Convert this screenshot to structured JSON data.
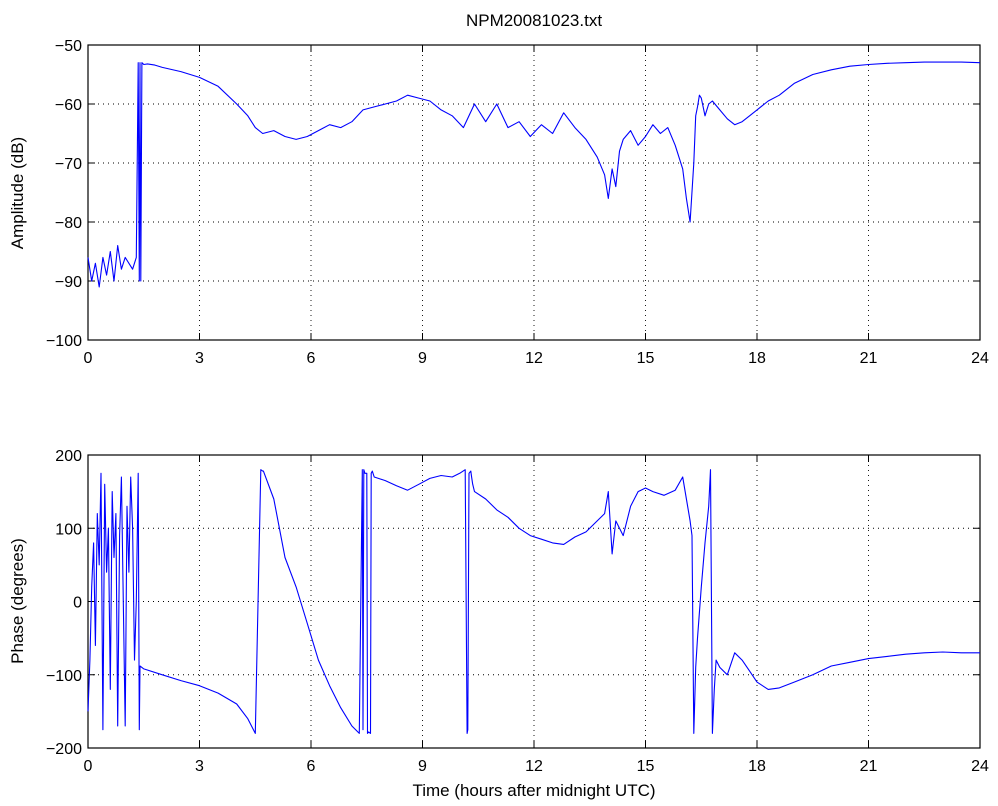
{
  "figure_title": "NPM20081023.txt",
  "chart_data": [
    {
      "type": "line",
      "title": "NPM20081023.txt",
      "xlabel": "",
      "ylabel": "Amplitude (dB)",
      "xlim": [
        0,
        24
      ],
      "ylim": [
        -100,
        -50
      ],
      "xticks": [
        "0",
        "3",
        "6",
        "9",
        "12",
        "15",
        "18",
        "21",
        "24"
      ],
      "yticks": [
        "-100",
        "-90",
        "-80",
        "-70",
        "-60",
        "-50"
      ],
      "grid": true,
      "color": "#0000ff",
      "series": [
        {
          "x": [
            0,
            0.1,
            0.2,
            0.3,
            0.4,
            0.5,
            0.6,
            0.7,
            0.8,
            0.9,
            1.0,
            1.1,
            1.2,
            1.3,
            1.35,
            1.38,
            1.4,
            1.42,
            1.45,
            1.5,
            1.6,
            1.8,
            2.0,
            2.5,
            3.0,
            3.5,
            4.0,
            4.3,
            4.5,
            4.7,
            5.0,
            5.3,
            5.6,
            5.9,
            6.2,
            6.5,
            6.8,
            7.1,
            7.4,
            7.7,
            8.0,
            8.3,
            8.6,
            8.9,
            9.2,
            9.5,
            9.8,
            10.1,
            10.4,
            10.7,
            11.0,
            11.3,
            11.6,
            11.9,
            12.2,
            12.5,
            12.8,
            13.1,
            13.4,
            13.7,
            13.9,
            14.0,
            14.1,
            14.2,
            14.3,
            14.4,
            14.6,
            14.8,
            15.0,
            15.2,
            15.4,
            15.6,
            15.8,
            16.0,
            16.1,
            16.2,
            16.3,
            16.35,
            16.4,
            16.45,
            16.5,
            16.6,
            16.7,
            16.8,
            17.0,
            17.2,
            17.4,
            17.6,
            17.8,
            18.0,
            18.3,
            18.6,
            19.0,
            19.5,
            20.0,
            20.5,
            21.0,
            21.5,
            22.0,
            22.5,
            23.0,
            23.5,
            24.0
          ],
          "y": [
            -86,
            -90,
            -87,
            -91,
            -86,
            -89,
            -85,
            -90,
            -84,
            -88,
            -86,
            -87,
            -88,
            -86,
            -53,
            -90,
            -53,
            -90,
            -53,
            -53.3,
            -53.2,
            -53.4,
            -53.8,
            -54.5,
            -55.5,
            -57,
            -60,
            -62,
            -64,
            -65,
            -64.5,
            -65.5,
            -66,
            -65.5,
            -64.5,
            -63.5,
            -64,
            -63,
            -61,
            -60.5,
            -60,
            -59.5,
            -58.5,
            -59,
            -59.5,
            -61,
            -62,
            -64,
            -60,
            -63,
            -60,
            -64,
            -63,
            -65.5,
            -63.5,
            -65,
            -61.5,
            -64,
            -66,
            -69,
            -72,
            -76,
            -71,
            -74,
            -68,
            -66,
            -64.5,
            -67,
            -65.5,
            -63.5,
            -65,
            -64,
            -67,
            -71,
            -76,
            -80,
            -70,
            -62,
            -60.5,
            -58.5,
            -59,
            -62,
            -60,
            -59.5,
            -61,
            -62.5,
            -63.5,
            -63,
            -62,
            -61,
            -59.5,
            -58.5,
            -56.5,
            -55,
            -54.2,
            -53.6,
            -53.3,
            -53.1,
            -53,
            -52.9,
            -52.9,
            -52.9,
            -53
          ]
        }
      ]
    },
    {
      "type": "line",
      "title": "",
      "xlabel": "Time (hours after midnight UTC)",
      "ylabel": "Phase (degrees)",
      "xlim": [
        0,
        24
      ],
      "ylim": [
        -200,
        200
      ],
      "xticks": [
        "0",
        "3",
        "6",
        "9",
        "12",
        "15",
        "18",
        "21",
        "24"
      ],
      "yticks": [
        "-200",
        "-100",
        "0",
        "100",
        "200"
      ],
      "grid": true,
      "color": "#0000ff",
      "series": [
        {
          "x": [
            0,
            0.05,
            0.1,
            0.15,
            0.2,
            0.25,
            0.3,
            0.35,
            0.4,
            0.45,
            0.5,
            0.55,
            0.6,
            0.65,
            0.7,
            0.75,
            0.8,
            0.85,
            0.9,
            0.95,
            1.0,
            1.05,
            1.1,
            1.15,
            1.2,
            1.25,
            1.3,
            1.35,
            1.38,
            1.4,
            1.45,
            1.5,
            2.0,
            2.5,
            3.0,
            3.5,
            4.0,
            4.3,
            4.5,
            4.65,
            4.7,
            4.72,
            5.0,
            5.3,
            5.6,
            5.9,
            6.2,
            6.5,
            6.8,
            7.1,
            7.3,
            7.38,
            7.4,
            7.42,
            7.45,
            7.5,
            7.52,
            7.55,
            7.6,
            7.62,
            7.65,
            7.7,
            8.0,
            8.3,
            8.6,
            8.9,
            9.2,
            9.5,
            9.8,
            10.0,
            10.15,
            10.2,
            10.22,
            10.25,
            10.3,
            10.32,
            10.35,
            10.4,
            10.7,
            11.0,
            11.3,
            11.6,
            11.9,
            12.2,
            12.5,
            12.8,
            13.1,
            13.4,
            13.7,
            13.9,
            14.0,
            14.1,
            14.2,
            14.4,
            14.6,
            14.8,
            15.0,
            15.2,
            15.5,
            15.8,
            16.0,
            16.1,
            16.2,
            16.25,
            16.3,
            16.35,
            16.4,
            16.5,
            16.6,
            16.7,
            16.75,
            16.8,
            16.85,
            16.9,
            17.0,
            17.2,
            17.4,
            17.6,
            17.8,
            18.0,
            18.3,
            18.6,
            19.0,
            19.5,
            20.0,
            20.5,
            21.0,
            21.5,
            22.0,
            22.5,
            23.0,
            23.5,
            24.0
          ],
          "y": [
            -150,
            -80,
            20,
            80,
            -60,
            120,
            50,
            175,
            -175,
            160,
            40,
            100,
            -120,
            150,
            60,
            120,
            -170,
            90,
            170,
            0,
            -170,
            130,
            40,
            170,
            100,
            -80,
            0,
            175,
            -175,
            -88,
            -90,
            -92,
            -100,
            -108,
            -115,
            -125,
            -140,
            -160,
            -180,
            180,
            178,
            178,
            140,
            60,
            20,
            -30,
            -80,
            -115,
            -145,
            -170,
            -180,
            180,
            -175,
            180,
            175,
            175,
            -180,
            -178,
            -180,
            175,
            178,
            170,
            165,
            158,
            152,
            160,
            168,
            172,
            170,
            175,
            180,
            -180,
            -175,
            175,
            178,
            170,
            160,
            150,
            140,
            125,
            115,
            100,
            90,
            85,
            80,
            78,
            88,
            95,
            110,
            120,
            150,
            65,
            110,
            90,
            130,
            150,
            155,
            150,
            145,
            152,
            170,
            140,
            110,
            90,
            -180,
            -90,
            -50,
            20,
            80,
            130,
            180,
            -180,
            -120,
            -80,
            -90,
            -100,
            -70,
            -80,
            -95,
            -110,
            -120,
            -118,
            -110,
            -100,
            -88,
            -83,
            -78,
            -75,
            -72,
            -70,
            -69,
            -70,
            -70
          ]
        }
      ]
    }
  ]
}
